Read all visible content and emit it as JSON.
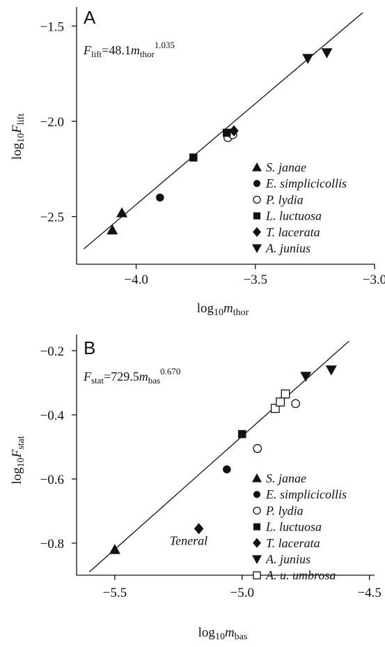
{
  "chart_data": [
    {
      "type": "scatter",
      "panel_label": "A",
      "equation": {
        "base": "F",
        "base_sub": "lift",
        "mid": "=48.1",
        "var": "m",
        "var_sub": "thor",
        "exp": "1.035"
      },
      "xlabel": {
        "prefix": "log",
        "prefix_sub": "10",
        "var": "m",
        "var_sub": "thor"
      },
      "ylabel": {
        "prefix": "log",
        "prefix_sub": "10",
        "var": "F",
        "var_sub": "lift"
      },
      "xlim": [
        -4.25,
        -3.0
      ],
      "ylim": [
        -2.75,
        -1.4
      ],
      "xticks": [
        -4.0,
        -3.5,
        -3.0
      ],
      "xtick_labels": [
        "−4.0",
        "−3.5",
        "−3.0"
      ],
      "yticks": [
        -2.5,
        -2.0,
        -1.5
      ],
      "ytick_labels": [
        "−2.5",
        "−2.0",
        "−1.5"
      ],
      "fit_line": {
        "x": [
          -4.22,
          -3.05
        ],
        "y": [
          -2.67,
          -1.43
        ]
      },
      "legend_position": "lower-right",
      "series": [
        {
          "name": "S. janae",
          "marker": "triangle-up",
          "x": [
            -4.1,
            -4.06
          ],
          "y": [
            -2.57,
            -2.48
          ]
        },
        {
          "name": "E. simplicicollis",
          "marker": "circle-filled",
          "x": [
            -3.9
          ],
          "y": [
            -2.4
          ]
        },
        {
          "name": "P. lydia",
          "marker": "circle-open",
          "x": [
            -3.615,
            -3.595
          ],
          "y": [
            -2.085,
            -2.07
          ]
        },
        {
          "name": "L. luctuosa",
          "marker": "square-filled",
          "x": [
            -3.76,
            -3.62
          ],
          "y": [
            -2.19,
            -2.06
          ]
        },
        {
          "name": "T. lacerata",
          "marker": "diamond-filled",
          "x": [
            -3.59
          ],
          "y": [
            -2.05
          ]
        },
        {
          "name": "A. junius",
          "marker": "triangle-down",
          "x": [
            -3.28,
            -3.2
          ],
          "y": [
            -1.67,
            -1.64
          ]
        }
      ]
    },
    {
      "type": "scatter",
      "panel_label": "B",
      "equation": {
        "base": "F",
        "base_sub": "stat",
        "mid": "=729.5",
        "var": "m",
        "var_sub": "bas",
        "exp": "0.670"
      },
      "xlabel": {
        "prefix": "log",
        "prefix_sub": "10",
        "var": "m",
        "var_sub": "bas"
      },
      "ylabel": {
        "prefix": "log",
        "prefix_sub": "10",
        "var": "F",
        "var_sub": "stat"
      },
      "xlim": [
        -5.65,
        -4.48
      ],
      "ylim": [
        -0.9,
        -0.15
      ],
      "xticks": [
        -5.5,
        -5.0,
        -4.5
      ],
      "xtick_labels": [
        "−5.5",
        "−5.0",
        "−4.5"
      ],
      "yticks": [
        -0.8,
        -0.6,
        -0.4,
        -0.2
      ],
      "ytick_labels": [
        "−0.8",
        "−0.6",
        "−0.4",
        "−0.2"
      ],
      "fit_line": {
        "x": [
          -5.6,
          -4.58
        ],
        "y": [
          -0.89,
          -0.17
        ]
      },
      "legend_position": "lower-right",
      "annotation": {
        "text": "Teneral",
        "x": -5.21,
        "y": -0.805
      },
      "series": [
        {
          "name": "S. janae",
          "marker": "triangle-up",
          "x": [
            -5.5
          ],
          "y": [
            -0.82
          ]
        },
        {
          "name": "E. simplicicollis",
          "marker": "circle-filled",
          "x": [
            -5.06
          ],
          "y": [
            -0.57
          ]
        },
        {
          "name": "P. lydia",
          "marker": "circle-open",
          "x": [
            -4.94,
            -4.79
          ],
          "y": [
            -0.505,
            -0.365
          ]
        },
        {
          "name": "L. luctuosa",
          "marker": "square-filled",
          "x": [
            -5.0
          ],
          "y": [
            -0.46
          ]
        },
        {
          "name": "T. lacerata",
          "marker": "diamond-filled",
          "x": [
            -5.17
          ],
          "y": [
            -0.755
          ]
        },
        {
          "name": "A. junius",
          "marker": "triangle-down",
          "x": [
            -4.75,
            -4.65
          ],
          "y": [
            -0.28,
            -0.26
          ]
        },
        {
          "name": "A. u. umbrosa",
          "marker": "square-open",
          "x": [
            -4.87,
            -4.85,
            -4.83
          ],
          "y": [
            -0.38,
            -0.36,
            -0.335
          ]
        }
      ]
    }
  ]
}
